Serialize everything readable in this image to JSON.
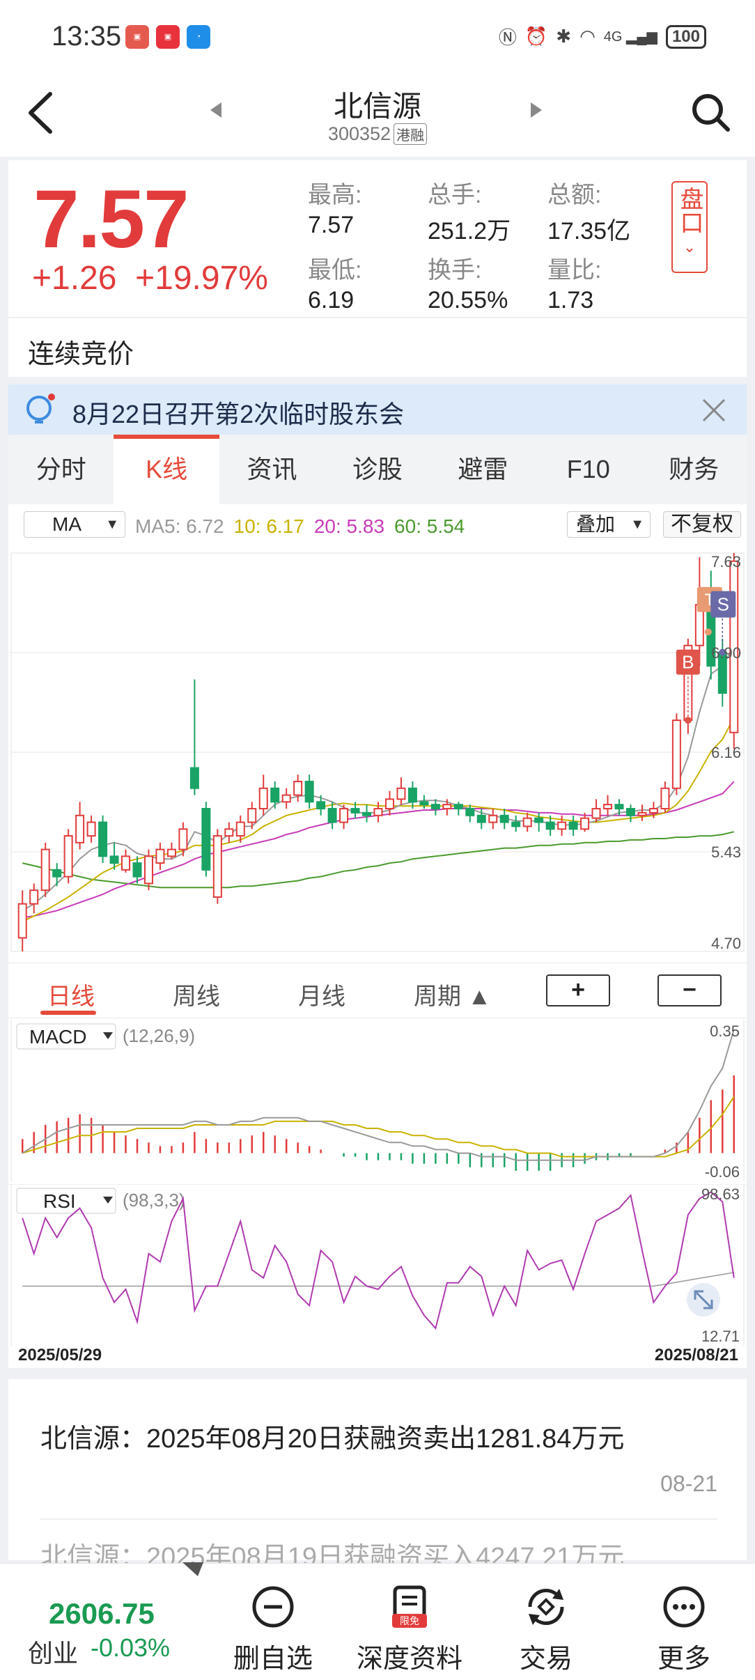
{
  "status_bar": {
    "time": "13:35",
    "battery": "100",
    "network": "4G"
  },
  "header": {
    "title": "北信源",
    "code": "300352",
    "tag": "港融"
  },
  "quote": {
    "price": "7.57",
    "change": "+1.26",
    "change_pct": "+19.97%",
    "stats": [
      {
        "label": "最高:",
        "value": "7.57"
      },
      {
        "label": "总手:",
        "value": "251.2万"
      },
      {
        "label": "总额:",
        "value": "17.35亿"
      },
      {
        "label": "最低:",
        "value": "6.19"
      },
      {
        "label": "换手:",
        "value": "20.55%"
      },
      {
        "label": "量比:",
        "value": "1.73"
      }
    ],
    "pankou_label": "盘口"
  },
  "session_status": "连续竞价",
  "notice": {
    "text": "8月22日召开第2次临时股东会"
  },
  "tabs": [
    "分时",
    "K线",
    "资讯",
    "诊股",
    "避雷",
    "F10",
    "财务"
  ],
  "active_tab": "K线",
  "ma_bar": {
    "indicator": "MA",
    "ma5": "MA5: 6.72",
    "ma10": "10: 6.17",
    "ma20": "20: 5.83",
    "ma60": "60: 5.54",
    "overlay": "叠加",
    "adjust": "不复权"
  },
  "kline": {
    "y_labels": [
      "7.63",
      "6.90",
      "6.16",
      "5.43",
      "4.70"
    ],
    "ymin": 4.7,
    "ymax": 7.63,
    "markers": {
      "b": "B",
      "s": "S",
      "t": "T"
    },
    "colors": {
      "up": "#e23b3b",
      "down": "#19a365",
      "ma5": "#999999",
      "ma10": "#c9b200",
      "ma20": "#c83ab8",
      "ma60": "#4a9a2e"
    },
    "candles": [
      [
        4.8,
        5.05,
        5.15,
        4.7
      ],
      [
        5.05,
        5.15,
        5.2,
        4.98
      ],
      [
        5.15,
        5.45,
        5.5,
        5.1
      ],
      [
        5.3,
        5.25,
        5.35,
        5.18
      ],
      [
        5.25,
        5.55,
        5.6,
        5.2
      ],
      [
        5.5,
        5.7,
        5.8,
        5.45
      ],
      [
        5.55,
        5.65,
        5.7,
        5.5
      ],
      [
        5.65,
        5.4,
        5.7,
        5.35
      ],
      [
        5.4,
        5.35,
        5.5,
        5.3
      ],
      [
        5.3,
        5.4,
        5.45,
        5.28
      ],
      [
        5.35,
        5.25,
        5.4,
        5.2
      ],
      [
        5.2,
        5.4,
        5.45,
        5.15
      ],
      [
        5.35,
        5.45,
        5.5,
        5.3
      ],
      [
        5.4,
        5.45,
        5.5,
        5.38
      ],
      [
        5.45,
        5.6,
        5.65,
        5.4
      ],
      [
        6.05,
        5.9,
        6.7,
        5.85
      ],
      [
        5.75,
        5.3,
        5.8,
        5.25
      ],
      [
        5.1,
        5.55,
        5.6,
        5.05
      ],
      [
        5.55,
        5.6,
        5.65,
        5.5
      ],
      [
        5.55,
        5.65,
        5.7,
        5.5
      ],
      [
        5.65,
        5.75,
        5.8,
        5.6
      ],
      [
        5.75,
        5.9,
        6.0,
        5.7
      ],
      [
        5.9,
        5.8,
        5.95,
        5.75
      ],
      [
        5.8,
        5.85,
        5.9,
        5.75
      ],
      [
        5.85,
        5.95,
        6.0,
        5.8
      ],
      [
        5.95,
        5.8,
        6.0,
        5.75
      ],
      [
        5.8,
        5.75,
        5.85,
        5.7
      ],
      [
        5.75,
        5.65,
        5.8,
        5.6
      ],
      [
        5.65,
        5.75,
        5.78,
        5.6
      ],
      [
        5.75,
        5.72,
        5.8,
        5.68
      ],
      [
        5.72,
        5.7,
        5.78,
        5.65
      ],
      [
        5.7,
        5.75,
        5.8,
        5.65
      ],
      [
        5.75,
        5.82,
        5.88,
        5.7
      ],
      [
        5.82,
        5.9,
        5.98,
        5.78
      ],
      [
        5.9,
        5.8,
        5.95,
        5.75
      ],
      [
        5.8,
        5.78,
        5.85,
        5.75
      ],
      [
        5.78,
        5.75,
        5.82,
        5.7
      ],
      [
        5.75,
        5.78,
        5.82,
        5.7
      ],
      [
        5.78,
        5.75,
        5.8,
        5.7
      ],
      [
        5.75,
        5.7,
        5.78,
        5.65
      ],
      [
        5.7,
        5.65,
        5.75,
        5.6
      ],
      [
        5.65,
        5.7,
        5.75,
        5.6
      ],
      [
        5.7,
        5.65,
        5.75,
        5.6
      ],
      [
        5.65,
        5.62,
        5.7,
        5.58
      ],
      [
        5.62,
        5.68,
        5.72,
        5.58
      ],
      [
        5.68,
        5.65,
        5.72,
        5.58
      ],
      [
        5.65,
        5.6,
        5.7,
        5.55
      ],
      [
        5.6,
        5.65,
        5.7,
        5.55
      ],
      [
        5.65,
        5.6,
        5.7,
        5.55
      ],
      [
        5.6,
        5.68,
        5.72,
        5.58
      ],
      [
        5.68,
        5.75,
        5.82,
        5.65
      ],
      [
        5.75,
        5.78,
        5.85,
        5.7
      ],
      [
        5.78,
        5.75,
        5.82,
        5.7
      ],
      [
        5.75,
        5.7,
        5.78,
        5.65
      ],
      [
        5.7,
        5.72,
        5.78,
        5.66
      ],
      [
        5.72,
        5.75,
        5.8,
        5.68
      ],
      [
        5.75,
        5.9,
        5.95,
        5.72
      ],
      [
        5.9,
        6.4,
        6.45,
        5.85
      ],
      [
        6.4,
        6.95,
        7.0,
        6.3
      ],
      [
        6.95,
        7.25,
        7.6,
        6.8
      ],
      [
        7.3,
        6.8,
        7.5,
        6.7
      ],
      [
        6.9,
        6.6,
        7.0,
        6.5
      ],
      [
        6.31,
        7.57,
        7.63,
        6.19
      ]
    ],
    "ma5": [
      5.0,
      5.05,
      5.12,
      5.2,
      5.28,
      5.38,
      5.45,
      5.48,
      5.5,
      5.48,
      5.42,
      5.4,
      5.38,
      5.38,
      5.42,
      5.58,
      5.55,
      5.5,
      5.56,
      5.62,
      5.62,
      5.7,
      5.78,
      5.82,
      5.84,
      5.85,
      5.83,
      5.8,
      5.76,
      5.72,
      5.72,
      5.72,
      5.74,
      5.78,
      5.8,
      5.81,
      5.81,
      5.8,
      5.77,
      5.75,
      5.72,
      5.7,
      5.68,
      5.66,
      5.66,
      5.66,
      5.64,
      5.63,
      5.63,
      5.64,
      5.66,
      5.69,
      5.72,
      5.73,
      5.74,
      5.74,
      5.79,
      5.91,
      6.13,
      6.46,
      6.74,
      6.8,
      6.94
    ],
    "ma10": [
      4.92,
      4.96,
      5.0,
      5.05,
      5.1,
      5.16,
      5.22,
      5.28,
      5.32,
      5.36,
      5.38,
      5.4,
      5.41,
      5.42,
      5.44,
      5.48,
      5.48,
      5.48,
      5.5,
      5.52,
      5.56,
      5.62,
      5.66,
      5.7,
      5.72,
      5.74,
      5.76,
      5.78,
      5.79,
      5.78,
      5.78,
      5.77,
      5.77,
      5.77,
      5.77,
      5.77,
      5.77,
      5.77,
      5.77,
      5.77,
      5.76,
      5.75,
      5.74,
      5.72,
      5.71,
      5.69,
      5.68,
      5.67,
      5.66,
      5.65,
      5.65,
      5.66,
      5.67,
      5.68,
      5.69,
      5.7,
      5.72,
      5.78,
      5.88,
      6.02,
      6.17,
      6.26,
      6.42
    ],
    "ma20": [
      4.95,
      4.96,
      4.98,
      5.0,
      5.03,
      5.06,
      5.09,
      5.12,
      5.16,
      5.19,
      5.22,
      5.25,
      5.28,
      5.31,
      5.34,
      5.38,
      5.41,
      5.43,
      5.45,
      5.47,
      5.49,
      5.51,
      5.53,
      5.56,
      5.58,
      5.61,
      5.63,
      5.65,
      5.67,
      5.68,
      5.69,
      5.7,
      5.71,
      5.72,
      5.73,
      5.74,
      5.74,
      5.75,
      5.75,
      5.75,
      5.75,
      5.75,
      5.74,
      5.74,
      5.73,
      5.72,
      5.72,
      5.71,
      5.71,
      5.7,
      5.7,
      5.7,
      5.7,
      5.7,
      5.7,
      5.71,
      5.72,
      5.74,
      5.77,
      5.8,
      5.83,
      5.86,
      5.95
    ],
    "ma60": [
      5.35,
      5.33,
      5.31,
      5.29,
      5.27,
      5.25,
      5.23,
      5.22,
      5.21,
      5.2,
      5.19,
      5.18,
      5.17,
      5.17,
      5.17,
      5.17,
      5.17,
      5.17,
      5.17,
      5.18,
      5.18,
      5.19,
      5.2,
      5.21,
      5.22,
      5.24,
      5.25,
      5.27,
      5.29,
      5.3,
      5.32,
      5.33,
      5.35,
      5.36,
      5.38,
      5.39,
      5.4,
      5.41,
      5.42,
      5.43,
      5.44,
      5.45,
      5.46,
      5.46,
      5.47,
      5.48,
      5.48,
      5.49,
      5.49,
      5.5,
      5.5,
      5.51,
      5.51,
      5.52,
      5.52,
      5.53,
      5.53,
      5.54,
      5.54,
      5.55,
      5.55,
      5.56,
      5.58
    ]
  },
  "periods": [
    "日线",
    "周线",
    "月线",
    "周期 ▲"
  ],
  "zoom": {
    "plus": "+",
    "minus": "−"
  },
  "macd": {
    "label": "MACD",
    "params": "(12,26,9)",
    "top": "0.35",
    "bottom": "-0.06",
    "min": -0.06,
    "max": 0.35,
    "hist": [
      0.04,
      0.06,
      0.08,
      0.09,
      0.1,
      0.11,
      0.1,
      0.08,
      0.06,
      0.05,
      0.04,
      0.03,
      0.02,
      0.02,
      0.03,
      0.06,
      0.04,
      0.03,
      0.03,
      0.04,
      0.05,
      0.06,
      0.05,
      0.04,
      0.03,
      0.02,
      0.01,
      0.0,
      -0.01,
      -0.01,
      -0.02,
      -0.02,
      -0.02,
      -0.02,
      -0.03,
      -0.03,
      -0.03,
      -0.03,
      -0.03,
      -0.04,
      -0.04,
      -0.04,
      -0.04,
      -0.05,
      -0.05,
      -0.05,
      -0.05,
      -0.04,
      -0.04,
      -0.03,
      -0.02,
      -0.02,
      -0.01,
      -0.01,
      0.0,
      0.0,
      0.01,
      0.03,
      0.06,
      0.1,
      0.15,
      0.18,
      0.22
    ],
    "dif": [
      0.0,
      0.02,
      0.04,
      0.06,
      0.07,
      0.08,
      0.08,
      0.08,
      0.08,
      0.08,
      0.08,
      0.08,
      0.08,
      0.08,
      0.08,
      0.09,
      0.09,
      0.08,
      0.08,
      0.09,
      0.09,
      0.1,
      0.1,
      0.1,
      0.1,
      0.09,
      0.09,
      0.08,
      0.07,
      0.06,
      0.05,
      0.04,
      0.03,
      0.03,
      0.02,
      0.02,
      0.01,
      0.01,
      0.0,
      0.0,
      -0.01,
      -0.01,
      -0.01,
      -0.02,
      -0.02,
      -0.02,
      -0.02,
      -0.02,
      -0.02,
      -0.02,
      -0.01,
      -0.01,
      -0.01,
      -0.01,
      -0.01,
      -0.01,
      0.0,
      0.02,
      0.06,
      0.12,
      0.19,
      0.24,
      0.35
    ],
    "dea": [
      0.0,
      0.01,
      0.02,
      0.03,
      0.04,
      0.05,
      0.05,
      0.06,
      0.06,
      0.06,
      0.07,
      0.07,
      0.07,
      0.07,
      0.07,
      0.08,
      0.08,
      0.08,
      0.08,
      0.08,
      0.08,
      0.08,
      0.09,
      0.09,
      0.09,
      0.09,
      0.09,
      0.09,
      0.08,
      0.08,
      0.07,
      0.07,
      0.06,
      0.06,
      0.05,
      0.05,
      0.04,
      0.04,
      0.03,
      0.03,
      0.02,
      0.02,
      0.01,
      0.01,
      0.0,
      0.0,
      0.0,
      -0.01,
      -0.01,
      -0.01,
      -0.01,
      -0.01,
      -0.01,
      -0.01,
      -0.01,
      -0.01,
      -0.01,
      0.0,
      0.01,
      0.04,
      0.07,
      0.11,
      0.16
    ]
  },
  "rsi": {
    "label": "RSI",
    "params": "(98,3,3)",
    "top": "98.63",
    "bottom": "12.71",
    "min": 12.71,
    "max": 98.63,
    "values": [
      82,
      60,
      82,
      70,
      82,
      88,
      76,
      45,
      30,
      38,
      18,
      60,
      55,
      80,
      94,
      25,
      40,
      40,
      60,
      80,
      50,
      45,
      65,
      55,
      35,
      28,
      62,
      55,
      30,
      46,
      40,
      38,
      46,
      52,
      34,
      22,
      14,
      42,
      42,
      52,
      46,
      22,
      40,
      28,
      62,
      50,
      54,
      56,
      38,
      60,
      80,
      84,
      88,
      96,
      62,
      30,
      40,
      48,
      84,
      94,
      98,
      92,
      45
    ]
  },
  "dates": {
    "start": "2025/05/29",
    "end": "2025/08/21"
  },
  "news": [
    {
      "text": "北信源：2025年08月20日获融资卖出1281.84万元",
      "date": "08-21"
    },
    {
      "text": "北信源：2025年08月19日获融资买入4247.21万元"
    }
  ],
  "bottom_bar": {
    "index_value": "2606.75",
    "index_name": "创业",
    "index_change": "-0.03%",
    "items": [
      {
        "label": "删自选",
        "icon": "minus-circle-icon"
      },
      {
        "label": "深度资料",
        "icon": "document-icon",
        "badge": "限免"
      },
      {
        "label": "交易",
        "icon": "exchange-icon"
      },
      {
        "label": "更多",
        "icon": "more-icon"
      }
    ]
  }
}
